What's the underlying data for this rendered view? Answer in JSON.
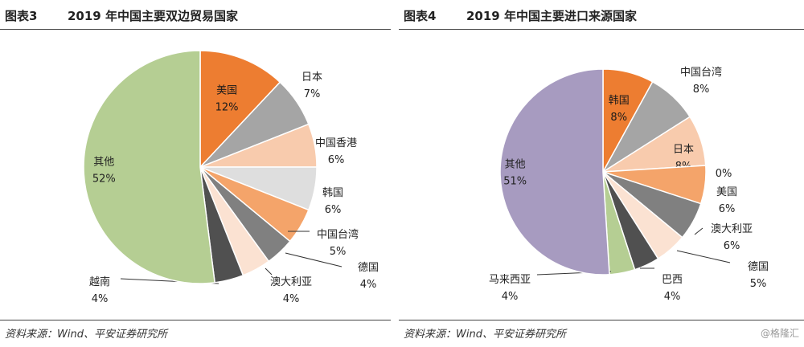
{
  "watermark": "@格隆汇",
  "charts": [
    {
      "figure_label": "图表3",
      "title": "2019 年中国主要双边贸易国家",
      "source": "资料来源：Wind、平安证券研究所"
    },
    {
      "figure_label": "图表4",
      "title": "2019 年中国主要进口来源国家",
      "source": "资料来源：Wind、平安证券研究所"
    }
  ],
  "chart_data": [
    {
      "type": "pie",
      "title": "2019 年中国主要双边贸易国家",
      "slices": [
        {
          "label": "美国",
          "value": 12,
          "display": "12%",
          "color": "#ED7D31"
        },
        {
          "label": "日本",
          "value": 7,
          "display": "7%",
          "color": "#A5A5A5"
        },
        {
          "label": "中国香港",
          "value": 6,
          "display": "6%",
          "color": "#F8CBAD"
        },
        {
          "label": "韩国",
          "value": 6,
          "display": "6%",
          "color": "#DEDEDE"
        },
        {
          "label": "中国台湾",
          "value": 5,
          "display": "5%",
          "color": "#F4A46A"
        },
        {
          "label": "德国",
          "value": 4,
          "display": "4%",
          "color": "#808080"
        },
        {
          "label": "澳大利亚",
          "value": 4,
          "display": "4%",
          "color": "#FBE2D2"
        },
        {
          "label": "越南",
          "value": 4,
          "display": "4%",
          "color": "#505050"
        },
        {
          "label": "其他",
          "value": 52,
          "display": "52%",
          "color": "#B5CE93"
        }
      ]
    },
    {
      "type": "pie",
      "title": "2019 年中国主要进口来源国家",
      "slices": [
        {
          "label": "韩国",
          "value": 8,
          "display": "8%",
          "color": "#ED7D31"
        },
        {
          "label": "中国台湾",
          "value": 8,
          "display": "8%",
          "color": "#A5A5A5"
        },
        {
          "label": "日本",
          "value": 8,
          "display": "8%",
          "color": "#F8CBAD"
        },
        {
          "label": "",
          "value": 0,
          "display": "0%",
          "color": "#DEDEDE"
        },
        {
          "label": "美国",
          "value": 6,
          "display": "6%",
          "color": "#F4A46A"
        },
        {
          "label": "澳大利亚",
          "value": 6,
          "display": "6%",
          "color": "#808080"
        },
        {
          "label": "德国",
          "value": 5,
          "display": "5%",
          "color": "#FBE2D2"
        },
        {
          "label": "巴西",
          "value": 4,
          "display": "4%",
          "color": "#505050"
        },
        {
          "label": "马来西亚",
          "value": 4,
          "display": "4%",
          "color": "#B5CE93"
        },
        {
          "label": "其他",
          "value": 51,
          "display": "51%",
          "color": "#A79BC0"
        }
      ]
    }
  ]
}
